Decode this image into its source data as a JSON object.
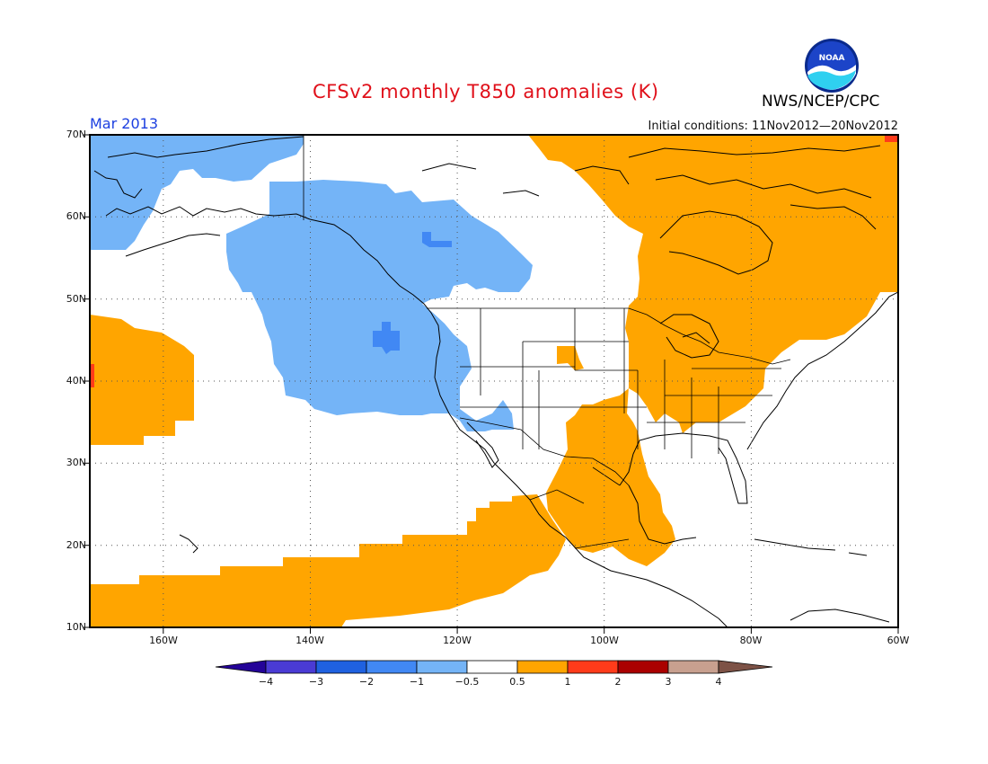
{
  "header": {
    "title": "CFSv2 monthly T850 anomalies (K)",
    "agency": "NWS/NCEP/CPC",
    "period": "Mar 2013",
    "initial_conditions": "Initial conditions: 11Nov2012—20Nov2012",
    "logo_text": "NOAA"
  },
  "map": {
    "projection": "lat-lon",
    "lon_range": [
      -170,
      -60
    ],
    "lat_range": [
      10,
      70
    ],
    "grid": "dotted",
    "lat_labels": [
      "70N",
      "60N",
      "50N",
      "40N",
      "30N",
      "20N",
      "10N"
    ],
    "lon_labels": [
      "160W",
      "140W",
      "120W",
      "100W",
      "80W",
      "60W"
    ],
    "anomaly_regions": [
      {
        "color": "#74b4f7",
        "level": "-1 to -0.5",
        "region": "Alaska, Bering Sea and Gulf of Alaska into western Canada and the US West Coast"
      },
      {
        "color": "#4188f4",
        "level": "-2 to -1",
        "region": "small cells off the Pacific Northwest and in western Canada"
      },
      {
        "color": "#ffa500",
        "level": "0.5 to 1",
        "region": "central/eastern Canada, Great Lakes, Ohio Valley, southern Plains, Mexico, Gulf of Mexico and a subtropical Pacific band"
      },
      {
        "color": "#ff3b1a",
        "level": "1 to 2",
        "region": "small cells in the far northeast and near 40N 170W"
      }
    ]
  },
  "colorbar": {
    "colors": [
      "#240398",
      "#4a3bd4",
      "#1f61e0",
      "#4188f4",
      "#74b4f7",
      "#ffffff",
      "#ffa500",
      "#ff3b1a",
      "#aa0000",
      "#c8a08f",
      "#7d5246"
    ],
    "labels": [
      "−4",
      "−3",
      "−2",
      "−1",
      "−0.5",
      "0.5",
      "1",
      "2",
      "3",
      "4"
    ]
  }
}
